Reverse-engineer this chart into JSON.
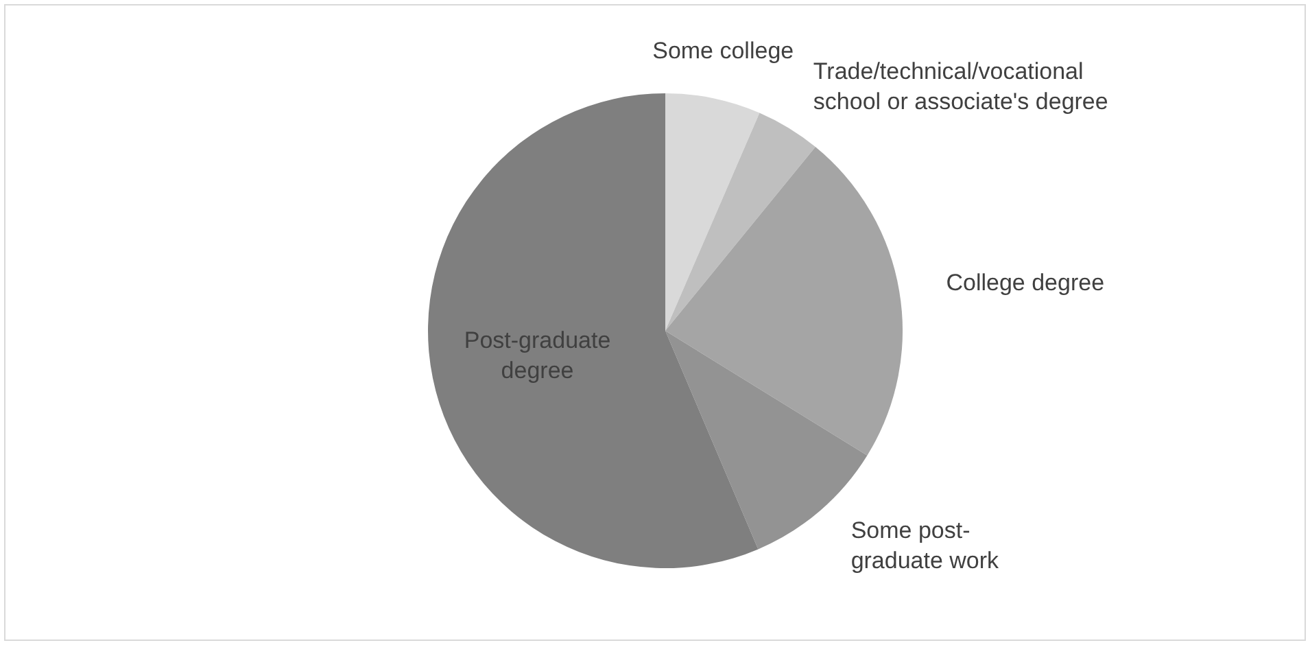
{
  "chart_data": {
    "type": "pie",
    "categories": [
      "Some college",
      "Trade/technical/vocational school or associate's degree",
      "College degree",
      "Some post-graduate work",
      "Post-graduate degree"
    ],
    "values": [
      6.5,
      4.4,
      22.9,
      9.8,
      56.4
    ],
    "colors": [
      "#d9d9d9",
      "#bfbfbf",
      "#a5a5a5",
      "#939393",
      "#7f7f7f"
    ],
    "legend": false
  }
}
